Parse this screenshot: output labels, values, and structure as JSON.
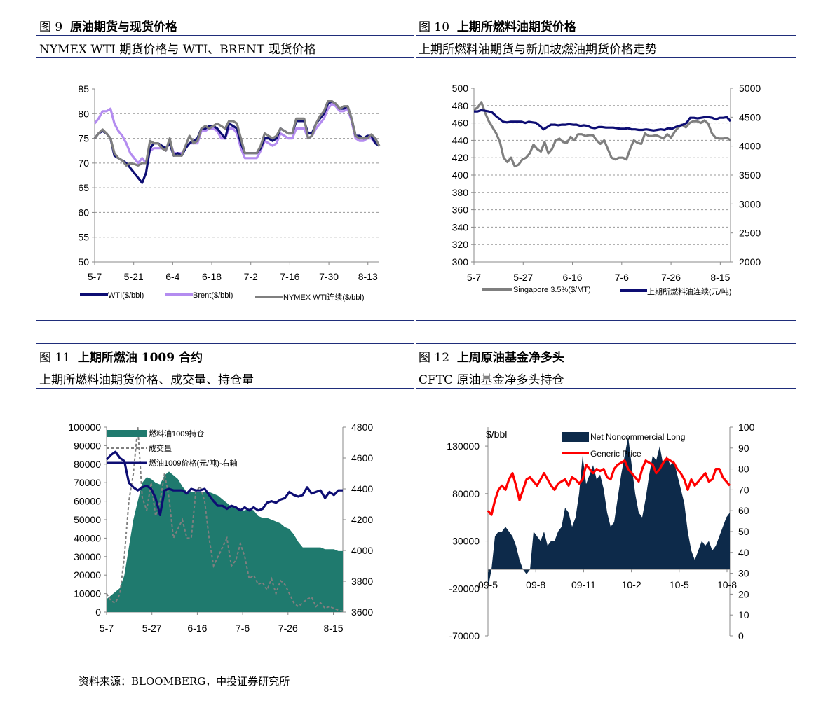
{
  "figures": [
    {
      "number": "图 9",
      "title": "原油期货与现货价格",
      "subtitle": "NYMEX WTI 期货价格与 WTI、BRENT 现货价格"
    },
    {
      "number": "图 10",
      "title": "上期所燃料油期货价格",
      "subtitle": "上期所燃料油期货与新加坡燃油期货价格走势"
    },
    {
      "number": "图 11",
      "title": "上期所燃油 1009 合约",
      "subtitle": "上期所燃料油期货价格、成交量、持仓量"
    },
    {
      "number": "图 12",
      "title": "上周原油基金净多头",
      "subtitle": "CFTC 原油基金净多头持仓"
    }
  ],
  "source": "资料来源：BLOOMBERG，中投证券研究所",
  "colors": {
    "navy": "#0d0d73",
    "lavender": "#b48cf0",
    "gray": "#7f7f7f",
    "teal": "#1f7a6e",
    "red": "#ff0000",
    "darknavy": "#0d2a4a",
    "rule": "#1f2d7a"
  },
  "chart_data": [
    {
      "type": "line",
      "x_ticks": [
        "5-7",
        "5-21",
        "6-4",
        "6-18",
        "7-2",
        "7-16",
        "7-30",
        "8-13"
      ],
      "ylim": [
        50,
        85
      ],
      "y_ticks": [
        "85",
        "80",
        "75",
        "70",
        "65",
        "60",
        "55",
        "50"
      ],
      "grid": true,
      "legend_position": "bottom",
      "series": [
        {
          "name": "WTI($/bbl)",
          "color": "#0d0d73",
          "values": [
            75,
            76,
            76.5,
            76,
            75,
            71.5,
            71,
            70.5,
            70,
            69,
            68,
            67,
            66,
            68,
            73,
            74,
            74,
            73.5,
            73,
            74,
            71.5,
            72,
            71.5,
            73,
            74,
            74.5,
            75,
            77,
            77,
            77.5,
            77.5,
            77,
            76,
            75,
            78,
            77.5,
            77,
            74,
            72,
            72,
            72,
            72,
            73,
            75,
            75,
            74.5,
            75,
            77,
            76.5,
            76,
            76,
            78.5,
            78.5,
            78.5,
            76,
            76,
            78,
            79,
            80,
            82,
            82.5,
            82,
            81,
            81,
            81.5,
            79,
            75.5,
            75.5,
            75,
            75.5,
            75.5,
            74,
            73.5
          ]
        },
        {
          "name": "Brent($/bbl)",
          "color": "#b48cf0",
          "values": [
            78,
            79,
            80.5,
            80.5,
            81,
            78,
            76.5,
            75.5,
            74,
            72,
            71,
            70,
            71,
            70,
            72.5,
            73,
            73,
            73,
            72.5,
            74.5,
            72,
            72,
            72,
            73,
            74,
            74,
            74,
            76.5,
            76.5,
            77,
            77,
            76.5,
            75,
            75,
            77,
            77,
            76,
            73,
            71,
            71,
            71,
            71,
            72.5,
            74.5,
            74,
            73.5,
            74,
            76,
            75.5,
            75,
            75,
            77,
            77,
            77,
            75,
            75.5,
            77,
            78,
            79,
            81,
            82,
            81.5,
            80.5,
            80.5,
            81,
            78.5,
            75,
            74.5,
            74.5,
            75,
            75,
            74,
            73.5
          ]
        },
        {
          "name": "NYMEX WTI连续($/bbl)",
          "color": "#7f7f7f",
          "values": [
            75,
            76,
            76.8,
            76,
            75,
            72,
            71,
            70.5,
            69.5,
            70,
            69.8,
            69.5,
            70,
            70,
            74.5,
            74,
            74,
            73,
            72.5,
            75,
            71.5,
            71.5,
            71.5,
            73.5,
            75.5,
            74,
            74.5,
            77,
            77.5,
            77,
            77.5,
            78,
            77.5,
            77,
            78.5,
            78.5,
            78,
            75,
            72,
            72,
            72,
            72,
            73.5,
            76,
            75.5,
            75,
            75.5,
            77,
            76.5,
            76,
            76,
            79,
            79,
            79,
            75,
            75.5,
            78,
            79.5,
            80.5,
            82.5,
            82.5,
            82,
            81,
            81.5,
            81.5,
            79,
            75.5,
            75,
            75,
            75,
            75.8,
            75,
            73.5
          ]
        }
      ]
    },
    {
      "type": "line",
      "x_ticks": [
        "5-7",
        "5-27",
        "6-16",
        "7-6",
        "7-26",
        "8-15"
      ],
      "ylim": [
        300,
        500
      ],
      "y_ticks": [
        "500",
        "480",
        "460",
        "440",
        "420",
        "400",
        "380",
        "360",
        "340",
        "320",
        "300"
      ],
      "y2lim": [
        2000,
        5000
      ],
      "y2_ticks": [
        "5000",
        "4500",
        "4000",
        "3500",
        "3000",
        "2500",
        "2000"
      ],
      "grid": true,
      "legend_position": "bottom",
      "series": [
        {
          "name": "Singapore 3.5%($/MT)",
          "axis": "left",
          "color": "#7f7f7f",
          "values": [
            475,
            478,
            484,
            472,
            462,
            455,
            448,
            438,
            420,
            415,
            420,
            410,
            412,
            418,
            420,
            425,
            435,
            430,
            427,
            438,
            425,
            430,
            440,
            442,
            438,
            437,
            444,
            440,
            447,
            447,
            445,
            446,
            446,
            440,
            436,
            440,
            430,
            420,
            418,
            420,
            420,
            418,
            430,
            440,
            437,
            436,
            448,
            445,
            445,
            446,
            444,
            442,
            447,
            443,
            450,
            455,
            458,
            455,
            460,
            462,
            462,
            460,
            463,
            459,
            448,
            443,
            442,
            442,
            443,
            440
          ]
        },
        {
          "name": "上期所燃料油连续(元/吨)",
          "axis": "right",
          "color": "#0d0d73",
          "values": [
            4600,
            4600,
            4620,
            4610,
            4600,
            4580,
            4520,
            4470,
            4420,
            4410,
            4420,
            4420,
            4420,
            4420,
            4400,
            4420,
            4410,
            4400,
            4350,
            4290,
            4330,
            4370,
            4370,
            4360,
            4370,
            4370,
            4380,
            4370,
            4370,
            4350,
            4360,
            4350,
            4320,
            4310,
            4330,
            4330,
            4320,
            4320,
            4320,
            4310,
            4300,
            4300,
            4310,
            4290,
            4290,
            4280,
            4280,
            4290,
            4280,
            4270,
            4280,
            4290,
            4280,
            4310,
            4300,
            4330,
            4350,
            4370,
            4400,
            4490,
            4490,
            4480,
            4490,
            4500,
            4500,
            4490,
            4460,
            4490,
            4490,
            4500,
            4430
          ]
        }
      ]
    },
    {
      "type": "area",
      "x_ticks": [
        "5-7",
        "5-27",
        "6-16",
        "7-6",
        "7-26",
        "8-15"
      ],
      "ylim": [
        0,
        100000
      ],
      "y_ticks": [
        "100000",
        "90000",
        "80000",
        "70000",
        "60000",
        "50000",
        "40000",
        "30000",
        "20000",
        "10000",
        "0"
      ],
      "y2lim": [
        3600,
        4800
      ],
      "y2_ticks": [
        "4800",
        "4600",
        "4400",
        "4200",
        "4000",
        "3800",
        "3600"
      ],
      "legend_position": "top-left",
      "series": [
        {
          "name": "燃料油1009持仓",
          "axis": "left",
          "color": "#1f7a6e",
          "values": [
            7000,
            9000,
            11000,
            13000,
            20000,
            35000,
            50000,
            60000,
            70000,
            73000,
            72000,
            70000,
            69000,
            74000,
            76000,
            74000,
            72000,
            68000,
            65000,
            65000,
            65000,
            65000,
            65000,
            65000,
            64000,
            63000,
            61000,
            59000,
            57000,
            56000,
            55000,
            55000,
            56000,
            55000,
            52000,
            51000,
            51000,
            50000,
            49000,
            48000,
            46000,
            45000,
            42000,
            38000,
            35000,
            35000,
            35000,
            35000,
            35000,
            34000,
            34000,
            34000,
            33000,
            33000
          ]
        },
        {
          "name": "成交量",
          "axis": "left",
          "color": "#7f7f7f",
          "values": [
            10000,
            6000,
            5000,
            10000,
            30000,
            60000,
            75000,
            100000,
            62000,
            55000,
            70000,
            52000,
            60000,
            75000,
            62000,
            40000,
            45000,
            50000,
            40000,
            40000,
            65000,
            68000,
            60000,
            40000,
            25000,
            30000,
            35000,
            40000,
            25000,
            28000,
            37000,
            30000,
            18000,
            20000,
            15000,
            16000,
            12000,
            18000,
            10000,
            17000,
            15000,
            10000,
            5000,
            3000,
            5000,
            7000,
            8000,
            3000,
            5000,
            2000,
            3000,
            2000,
            1000,
            500
          ]
        },
        {
          "name": "燃油1009价格(元/吨)-右轴",
          "axis": "right",
          "color": "#0d0d73",
          "values": [
            4590,
            4620,
            4640,
            4600,
            4580,
            4440,
            4410,
            4390,
            4410,
            4420,
            4400,
            4340,
            4230,
            4390,
            4400,
            4390,
            4390,
            4390,
            4370,
            4400,
            4390,
            4390,
            4400,
            4360,
            4320,
            4290,
            4290,
            4270,
            4290,
            4280,
            4260,
            4280,
            4260,
            4280,
            4260,
            4270,
            4310,
            4320,
            4310,
            4330,
            4340,
            4380,
            4360,
            4350,
            4360,
            4410,
            4370,
            4380,
            4390,
            4340,
            4380,
            4360,
            4390,
            4390
          ]
        }
      ]
    },
    {
      "type": "area",
      "x_ticks": [
        "09-5",
        "09-8",
        "09-11",
        "10-2",
        "10-5",
        "10-8"
      ],
      "ylim": [
        -70000,
        150000
      ],
      "y_ticks": [
        "130000",
        "80000",
        "30000",
        "-20000",
        "-70000"
      ],
      "y2lim": [
        0,
        100
      ],
      "y2_ticks": [
        "100",
        "90",
        "80",
        "70",
        "60",
        "50",
        "40",
        "30",
        "20",
        "10",
        "0"
      ],
      "ylabel": "$/bbl",
      "legend_position": "top",
      "series": [
        {
          "name": "Net Noncommercial Long",
          "axis": "left",
          "color": "#0d2a4a",
          "values": [
            -20000,
            0,
            35000,
            40000,
            40000,
            45000,
            40000,
            35000,
            25000,
            10000,
            0,
            -5000,
            0,
            40000,
            35000,
            30000,
            40000,
            25000,
            30000,
            30000,
            40000,
            45000,
            65000,
            60000,
            45000,
            55000,
            80000,
            120000,
            90000,
            100000,
            110000,
            95000,
            100000,
            85000,
            60000,
            45000,
            50000,
            75000,
            100000,
            120000,
            140000,
            110000,
            80000,
            60000,
            55000,
            75000,
            100000,
            120000,
            115000,
            130000,
            110000,
            120000,
            110000,
            115000,
            100000,
            85000,
            70000,
            40000,
            20000,
            10000,
            20000,
            30000,
            25000,
            30000,
            20000,
            25000,
            35000,
            45000,
            55000,
            60000
          ]
        },
        {
          "name": "Generic Price",
          "axis": "right",
          "color": "#ff0000",
          "values": [
            60,
            58,
            65,
            70,
            72,
            70,
            75,
            78,
            72,
            65,
            70,
            75,
            76,
            74,
            72,
            75,
            78,
            75,
            72,
            70,
            73,
            74,
            75,
            72,
            76,
            75,
            73,
            75,
            82,
            80,
            78,
            80,
            79,
            80,
            76,
            75,
            80,
            82,
            83,
            84,
            80,
            78,
            76,
            74,
            80,
            84,
            83,
            82,
            78,
            80,
            83,
            85,
            84,
            83,
            80,
            78,
            75,
            70,
            75,
            72,
            74,
            76,
            78,
            74,
            75,
            80,
            80,
            76,
            74,
            72
          ]
        }
      ]
    }
  ]
}
